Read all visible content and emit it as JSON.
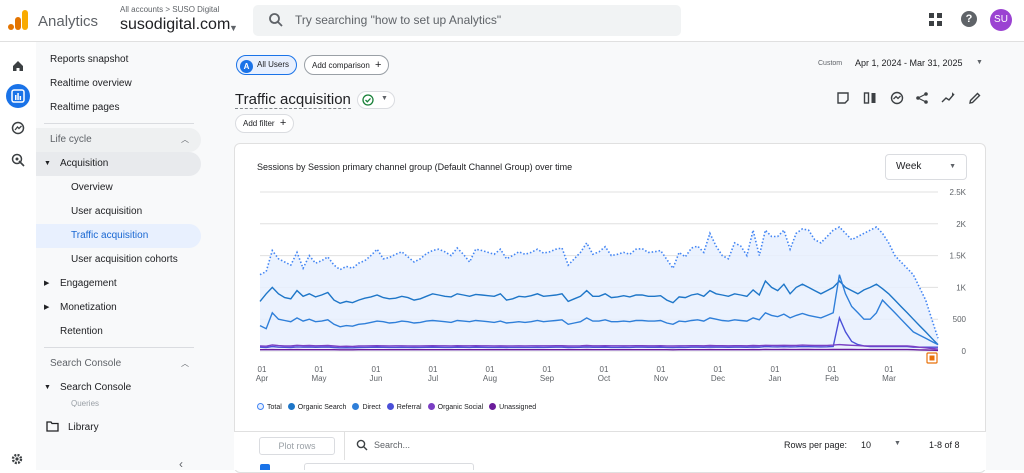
{
  "header": {
    "brand": "Analytics",
    "breadcrumb": "All accounts > SUSO Digital",
    "property": "susodigital.com",
    "search_placeholder": "Try searching \"how to set up Analytics\"",
    "avatar": "SU"
  },
  "rail": {
    "icons": [
      "home-icon",
      "reports-icon",
      "explore-icon",
      "advertising-icon"
    ]
  },
  "nav": {
    "items": [
      {
        "label": "Reports snapshot"
      },
      {
        "label": "Realtime overview"
      },
      {
        "label": "Realtime pages"
      }
    ],
    "lifecycle": {
      "section": "Life cycle",
      "acquisition": "Acquisition",
      "acquisition_children": [
        "Overview",
        "User acquisition",
        "Traffic acquisition",
        "User acquisition cohorts"
      ],
      "engagement": "Engagement",
      "monetization": "Monetization",
      "retention": "Retention"
    },
    "search_console": {
      "section": "Search Console",
      "item": "Search Console",
      "child": "Queries"
    },
    "library": "Library"
  },
  "toolbar": {
    "segment_letter": "A",
    "segment": "All Users",
    "add_comparison": "Add comparison",
    "date_label": "Custom",
    "date_range": "Apr 1, 2024 - Mar 31, 2025",
    "title": "Traffic acquisition",
    "add_filter": "Add filter",
    "tools": [
      "customize-report-icon",
      "compare-icon",
      "insights-icon",
      "share-icon",
      "trend-icon",
      "edit-icon"
    ]
  },
  "card": {
    "title": "Sessions by Session primary channel group (Default Channel Group) over time",
    "granularity": "Week"
  },
  "table": {
    "plot_rows": "Plot rows",
    "search_placeholder": "Search...",
    "rows_per_page_label": "Rows per page:",
    "rows_per_page": "10",
    "range": "1-8 of 8"
  },
  "colors": {
    "total": "#4285f4",
    "organic_search": "#1e76c8",
    "direct": "#2f7fd9",
    "referral": "#4b50d8",
    "organic_social": "#7b3fc4",
    "unassigned": "#6a1b9a",
    "accent": "#1a73e8"
  },
  "chart_data": {
    "type": "line",
    "title": "Sessions by Session primary channel group (Default Channel Group) over time",
    "xlabel": "",
    "ylabel": "",
    "ylim": [
      0,
      2500
    ],
    "grid": true,
    "legend": "bottom-left",
    "y_ticks": [
      "0",
      "500",
      "1K",
      "1.5K",
      "2K",
      "2.5K"
    ],
    "x_ticks": [
      {
        "day": "01",
        "month": "Apr"
      },
      {
        "day": "01",
        "month": "May"
      },
      {
        "day": "01",
        "month": "Jun"
      },
      {
        "day": "01",
        "month": "Jul"
      },
      {
        "day": "01",
        "month": "Aug"
      },
      {
        "day": "01",
        "month": "Sep"
      },
      {
        "day": "01",
        "month": "Oct"
      },
      {
        "day": "01",
        "month": "Nov"
      },
      {
        "day": "01",
        "month": "Dec"
      },
      {
        "day": "01",
        "month": "Jan"
      },
      {
        "day": "01",
        "month": "Feb"
      },
      {
        "day": "01",
        "month": "Mar"
      }
    ],
    "series": [
      {
        "name": "Total",
        "values": [
          1200,
          1250,
          1580,
          1450,
          1400,
          1350,
          1550,
          1300,
          1500,
          1380,
          1420,
          1480,
          1350,
          1280,
          1330,
          1300,
          1380,
          1420,
          1500,
          1600,
          1450,
          1470,
          1520,
          1560,
          1480,
          1400,
          1450,
          1530,
          1580,
          1600,
          1560,
          1500,
          1620,
          1520,
          1400,
          1600,
          1580,
          1550,
          1520,
          1600,
          1450,
          1500,
          1560,
          1520,
          1550,
          1600,
          1540,
          1560,
          1600,
          1620,
          1350,
          1450,
          1550,
          1700,
          1520,
          1560,
          1640,
          1500,
          1520,
          1550,
          1520,
          1600,
          1610,
          1550,
          1560,
          1580,
          1440,
          1300,
          1550,
          1480,
          1620,
          1650,
          1550,
          1850,
          1650,
          1500,
          1450,
          1700,
          1650,
          1500,
          1900,
          1500,
          1900,
          1800,
          1800,
          1900,
          1600,
          1850,
          1920,
          1900,
          1750,
          1700,
          1800,
          1900,
          1950,
          1850,
          1750,
          1800,
          1850,
          1900,
          1950,
          1850,
          1700,
          1500,
          1400,
          1300,
          1200,
          1000,
          800,
          500,
          200
        ]
      },
      {
        "name": "Organic Search",
        "values": [
          780,
          900,
          1000,
          900,
          840,
          820,
          950,
          860,
          900,
          850,
          880,
          920,
          800,
          750,
          780,
          760,
          800,
          830,
          850,
          880,
          840,
          820,
          830,
          860,
          840,
          800,
          820,
          860,
          900,
          880,
          860,
          850,
          900,
          880,
          860,
          890,
          880,
          870,
          860,
          900,
          800,
          820,
          860,
          850,
          870,
          900,
          860,
          870,
          880,
          900,
          780,
          820,
          860,
          950,
          860,
          860,
          900,
          840,
          850,
          870,
          850,
          880,
          880,
          860,
          860,
          870,
          800,
          760,
          850,
          840,
          880,
          900,
          860,
          950,
          900,
          880,
          860,
          900,
          880,
          860,
          960,
          880,
          1100,
          1000,
          950,
          1050,
          900,
          1000,
          1050,
          1000,
          950,
          900,
          950,
          1000,
          1100,
          1000,
          950,
          900,
          960,
          1000,
          1050,
          980,
          900,
          800,
          700,
          600,
          500,
          400,
          300,
          200,
          100
        ]
      },
      {
        "name": "Direct",
        "values": [
          400,
          350,
          600,
          500,
          480,
          460,
          520,
          470,
          500,
          460,
          470,
          490,
          420,
          380,
          400,
          390,
          420,
          430,
          450,
          470,
          460,
          440,
          450,
          470,
          460,
          440,
          450,
          470,
          480,
          470,
          460,
          450,
          480,
          470,
          460,
          480,
          470,
          460,
          450,
          470,
          440,
          450,
          460,
          450,
          460,
          480,
          460,
          470,
          480,
          490,
          420,
          440,
          460,
          520,
          470,
          470,
          490,
          460,
          460,
          470,
          460,
          480,
          480,
          470,
          470,
          480,
          440,
          420,
          470,
          460,
          480,
          490,
          470,
          520,
          500,
          480,
          470,
          490,
          480,
          470,
          520,
          490,
          600,
          560,
          540,
          580,
          520,
          560,
          590,
          560,
          540,
          520,
          560,
          600,
          1200,
          900,
          700,
          600,
          500,
          500,
          600,
          800,
          700,
          600,
          500,
          400,
          300,
          250,
          200,
          150,
          100
        ]
      },
      {
        "name": "Referral",
        "values": [
          60,
          55,
          70,
          60,
          58,
          55,
          65,
          60,
          62,
          58,
          60,
          62,
          55,
          50,
          52,
          50,
          55,
          56,
          58,
          60,
          58,
          56,
          57,
          58,
          56,
          55,
          56,
          58,
          60,
          58,
          57,
          56,
          60,
          58,
          57,
          59,
          58,
          57,
          56,
          58,
          55,
          56,
          57,
          56,
          57,
          58,
          57,
          58,
          59,
          60,
          55,
          57,
          58,
          62,
          58,
          58,
          60,
          57,
          57,
          58,
          57,
          59,
          59,
          58,
          58,
          59,
          56,
          54,
          58,
          57,
          59,
          60,
          58,
          62,
          60,
          59,
          58,
          60,
          59,
          58,
          62,
          60,
          70,
          66,
          65,
          68,
          64,
          66,
          70,
          68,
          66,
          64,
          66,
          70,
          520,
          300,
          150,
          100,
          80,
          70,
          70,
          70,
          70,
          70,
          70,
          70,
          60,
          60,
          60,
          60,
          60
        ]
      },
      {
        "name": "Organic Social",
        "values": [
          80,
          75,
          95,
          85,
          80,
          78,
          90,
          84,
          86,
          82,
          84,
          86,
          78,
          72,
          75,
          72,
          78,
          80,
          82,
          84,
          82,
          80,
          81,
          82,
          80,
          78,
          80,
          82,
          84,
          82,
          81,
          80,
          84,
          82,
          81,
          83,
          82,
          81,
          80,
          82,
          78,
          80,
          81,
          80,
          81,
          82,
          81,
          82,
          83,
          84,
          78,
          80,
          82,
          86,
          82,
          82,
          84,
          81,
          81,
          82,
          81,
          83,
          83,
          82,
          82,
          83,
          80,
          78,
          82,
          81,
          83,
          84,
          82,
          86,
          84,
          83,
          82,
          84,
          83,
          82,
          86,
          84,
          90,
          88,
          87,
          90,
          86,
          88,
          92,
          90,
          88,
          86,
          88,
          92,
          100,
          95,
          90,
          85,
          80,
          80,
          80,
          80,
          80,
          80,
          80,
          80,
          70,
          60,
          50,
          40,
          30
        ]
      },
      {
        "name": "Unassigned",
        "values": [
          20,
          20,
          22,
          21,
          20,
          20,
          22,
          21,
          21,
          20,
          21,
          21,
          20,
          19,
          19,
          19,
          20,
          20,
          20,
          21,
          20,
          20,
          20,
          21,
          20,
          20,
          20,
          21,
          21,
          21,
          20,
          20,
          21,
          21,
          20,
          21,
          21,
          20,
          20,
          21,
          20,
          20,
          20,
          20,
          20,
          21,
          20,
          21,
          21,
          21,
          20,
          20,
          21,
          22,
          21,
          21,
          21,
          20,
          20,
          21,
          20,
          21,
          21,
          21,
          21,
          21,
          20,
          19,
          21,
          20,
          21,
          21,
          21,
          22,
          21,
          21,
          21,
          21,
          21,
          21,
          22,
          21,
          23,
          22,
          22,
          23,
          22,
          22,
          23,
          23,
          22,
          22,
          22,
          23,
          25,
          24,
          23,
          22,
          22,
          22,
          22,
          22,
          22,
          22,
          22,
          22,
          20,
          18,
          15,
          12,
          10
        ]
      }
    ]
  }
}
